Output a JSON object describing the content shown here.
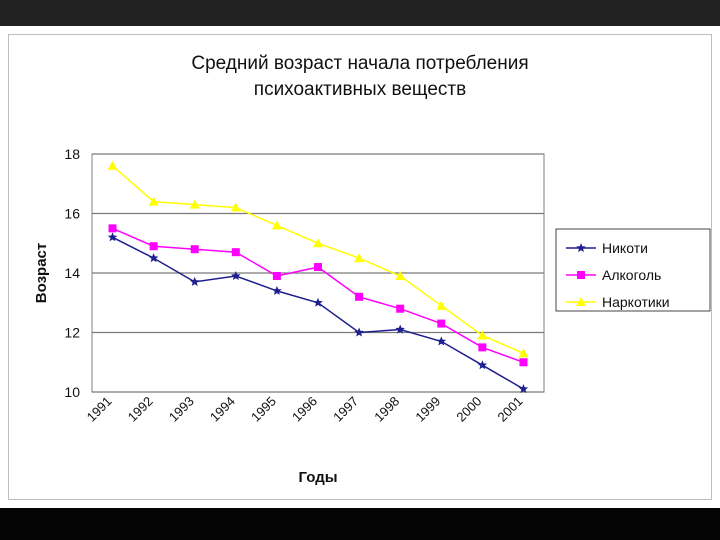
{
  "chart_data": {
    "type": "line",
    "title_lines": [
      "Средний возраст начала потребления",
      "психоактивных веществ"
    ],
    "xlabel": "Годы",
    "ylabel": "Возраст",
    "categories": [
      "1991",
      "1992",
      "1993",
      "1994",
      "1995",
      "1996",
      "1997",
      "1998",
      "1999",
      "2000",
      "2001"
    ],
    "ylim": [
      10,
      18
    ],
    "yticks": [
      "10",
      "12",
      "14",
      "16",
      "18"
    ],
    "grid": true,
    "legend_position": "right",
    "series": [
      {
        "name": "Никоти",
        "values": [
          15.2,
          14.5,
          13.7,
          13.9,
          13.4,
          13.0,
          12.0,
          12.1,
          11.7,
          10.9,
          10.1
        ],
        "color": "#1f1f8f",
        "marker": "star"
      },
      {
        "name": "Алкоголь",
        "values": [
          15.5,
          14.9,
          14.8,
          14.7,
          13.9,
          14.2,
          13.2,
          12.8,
          12.3,
          11.5,
          11.0
        ],
        "color": "#ff00ff",
        "marker": "square"
      },
      {
        "name": "Наркотики",
        "values": [
          17.6,
          16.4,
          16.3,
          16.2,
          15.6,
          15.0,
          14.5,
          13.9,
          12.9,
          11.9,
          11.3
        ],
        "color": "#ffff00",
        "marker": "triangle"
      }
    ]
  }
}
